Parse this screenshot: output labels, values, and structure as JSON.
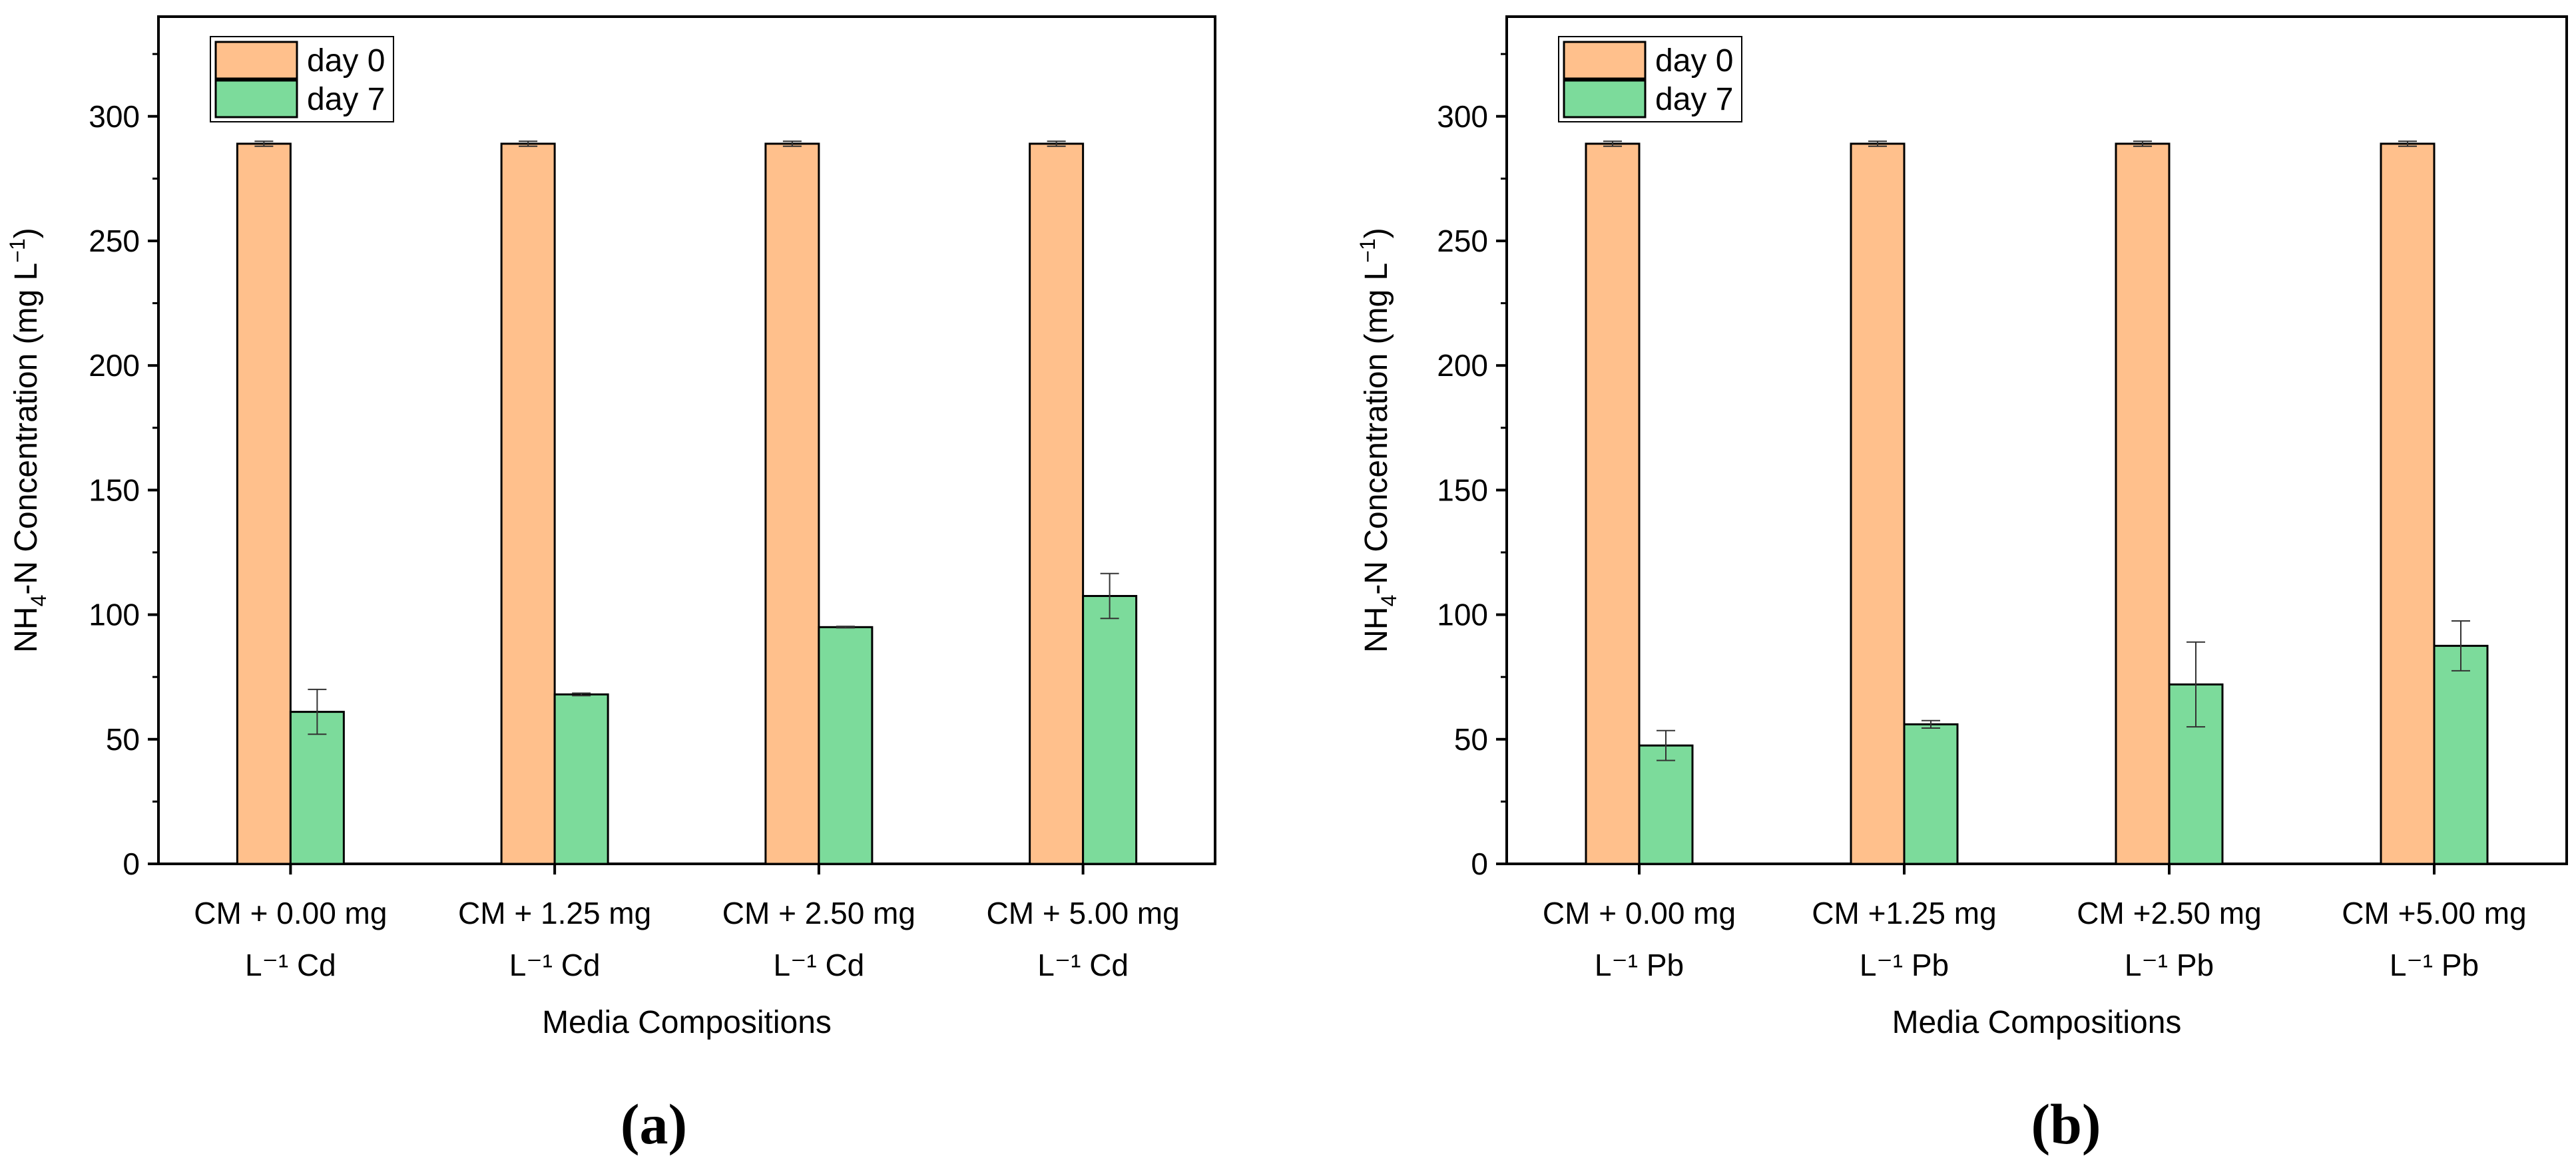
{
  "colors": {
    "day0": "#FFC08C",
    "day7": "#7CDB9B",
    "axis": "#000000"
  },
  "chart_data": [
    {
      "type": "bar",
      "panel_label": "(a)",
      "xlabel": "Media Compositions",
      "ylabel_parts": [
        "NH",
        "4",
        "-N  Concentration (mg L",
        "−1",
        ")"
      ],
      "ylim": [
        0,
        340
      ],
      "yticks": [
        0,
        50,
        100,
        150,
        200,
        250,
        300
      ],
      "categories": [
        [
          "CM + 0.00 mg",
          "L⁻¹ Cd"
        ],
        [
          "CM + 1.25 mg",
          "L⁻¹ Cd"
        ],
        [
          "CM + 2.50 mg",
          "L⁻¹ Cd"
        ],
        [
          "CM + 5.00 mg",
          "L⁻¹ Cd"
        ]
      ],
      "legend_position": "top-left",
      "series": [
        {
          "name": "day 0",
          "values": [
            289,
            289,
            289,
            289
          ],
          "errors": [
            1,
            1,
            1,
            1
          ]
        },
        {
          "name": "day 7",
          "values": [
            61,
            68,
            95,
            107.5
          ],
          "errors": [
            9,
            0.5,
            0.3,
            9
          ]
        }
      ]
    },
    {
      "type": "bar",
      "panel_label": "(b)",
      "xlabel": "Media Compositions",
      "ylabel_parts": [
        "NH",
        "4",
        "-N Concentration (mg L",
        "−1",
        ")"
      ],
      "ylim": [
        0,
        340
      ],
      "yticks": [
        0,
        50,
        100,
        150,
        200,
        250,
        300
      ],
      "categories": [
        [
          "CM + 0.00 mg",
          "L⁻¹ Pb"
        ],
        [
          "CM  +1.25 mg",
          "L⁻¹ Pb"
        ],
        [
          "CM  +2.50 mg",
          "L⁻¹ Pb"
        ],
        [
          "CM  +5.00 mg",
          "L⁻¹ Pb"
        ]
      ],
      "legend_position": "top-left",
      "series": [
        {
          "name": "day 0",
          "values": [
            289,
            289,
            289,
            289
          ],
          "errors": [
            1,
            1,
            1,
            1
          ]
        },
        {
          "name": "day 7",
          "values": [
            47.5,
            56,
            72,
            87.5
          ],
          "errors": [
            6,
            1.5,
            17,
            10
          ]
        }
      ]
    }
  ]
}
